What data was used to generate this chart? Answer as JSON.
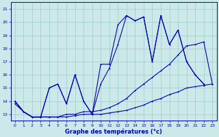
{
  "xlabel": "Graphe des températures (°c)",
  "xlim": [
    -0.5,
    23.5
  ],
  "ylim": [
    12.5,
    21.5
  ],
  "yticks": [
    13,
    14,
    15,
    16,
    17,
    18,
    19,
    20,
    21
  ],
  "xticks": [
    0,
    1,
    2,
    3,
    4,
    5,
    6,
    7,
    8,
    9,
    10,
    11,
    12,
    13,
    14,
    15,
    16,
    17,
    18,
    19,
    20,
    21,
    22,
    23
  ],
  "bg_color": "#cce8e8",
  "line_color": "#0000bb",
  "grid_color": "#99cccc",
  "line1_x": [
    0,
    1,
    2,
    3,
    4,
    5,
    6,
    7,
    8,
    9,
    10,
    11,
    12,
    13,
    14,
    15,
    16,
    17,
    18,
    19,
    20,
    21,
    22
  ],
  "line1_y": [
    14,
    13.2,
    12.8,
    12.8,
    15.0,
    15.3,
    13.8,
    16.0,
    14.0,
    13.0,
    16.8,
    16.8,
    19.8,
    20.5,
    20.1,
    20.4,
    17.0,
    20.5,
    18.3,
    19.4,
    17.0,
    16.0,
    15.3
  ],
  "line2_x": [
    0,
    1,
    2,
    3,
    4,
    5,
    6,
    7,
    8,
    9,
    10,
    11,
    12,
    13,
    14,
    15,
    16,
    17,
    18,
    19,
    20,
    21,
    22
  ],
  "line2_y": [
    14,
    13.2,
    12.8,
    12.8,
    15.0,
    15.3,
    13.8,
    16.0,
    14.0,
    13.0,
    15.3,
    16.5,
    18.3,
    20.5,
    20.1,
    20.4,
    17.0,
    20.5,
    18.3,
    19.4,
    17.0,
    16.0,
    15.3
  ],
  "line3_x": [
    0,
    1,
    2,
    3,
    4,
    5,
    6,
    7,
    8,
    9,
    10,
    11,
    12,
    13,
    14,
    15,
    16,
    17,
    18,
    19,
    20,
    21,
    22,
    23
  ],
  "line3_y": [
    14,
    13.2,
    12.8,
    12.8,
    12.8,
    12.8,
    13.0,
    13.0,
    13.2,
    13.2,
    13.3,
    13.5,
    13.8,
    14.2,
    14.8,
    15.3,
    15.8,
    16.3,
    16.8,
    17.5,
    18.2,
    18.3,
    18.5,
    15.3
  ],
  "line4_x": [
    0,
    1,
    2,
    3,
    4,
    5,
    6,
    7,
    8,
    9,
    10,
    11,
    12,
    13,
    14,
    15,
    16,
    17,
    18,
    19,
    20,
    21,
    22,
    23
  ],
  "line4_y": [
    13.8,
    13.2,
    12.8,
    12.8,
    12.8,
    12.8,
    12.8,
    12.9,
    13.0,
    13.0,
    13.0,
    13.1,
    13.2,
    13.3,
    13.5,
    13.7,
    14.0,
    14.2,
    14.5,
    14.7,
    15.0,
    15.1,
    15.2,
    15.3
  ]
}
